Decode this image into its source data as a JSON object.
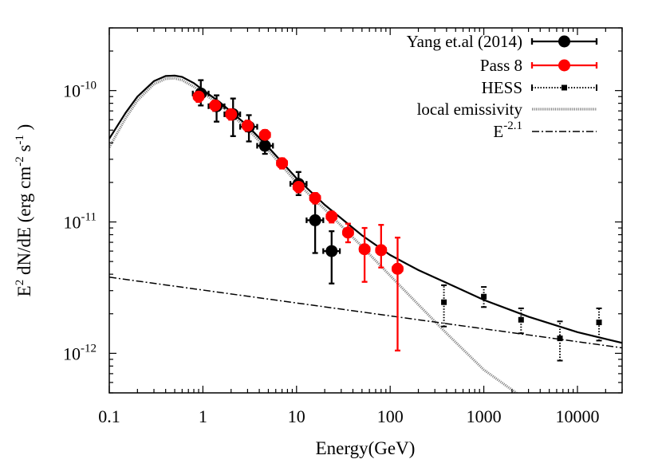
{
  "chart_data": {
    "type": "scatter",
    "xlabel": "Energy(GeV)",
    "ylabel": "E^2 dN/dE (erg cm^-2 s^-1)",
    "x_scale": "log",
    "y_scale": "log",
    "xlim": [
      0.1,
      30000
    ],
    "ylim": [
      5e-13,
      3e-10
    ],
    "x_ticks": [
      {
        "value": 0.1,
        "label": "0.1"
      },
      {
        "value": 1,
        "label": "1"
      },
      {
        "value": 10,
        "label": "10"
      },
      {
        "value": 100,
        "label": "100"
      },
      {
        "value": 1000,
        "label": "1000"
      },
      {
        "value": 10000,
        "label": "10000"
      }
    ],
    "y_ticks": [
      {
        "value": 1e-12,
        "base": "10",
        "exp": "-12"
      },
      {
        "value": 1e-11,
        "base": "10",
        "exp": "-11"
      },
      {
        "value": 1e-10,
        "base": "10",
        "exp": "-10"
      }
    ],
    "grid": false,
    "legend_position": "top-right",
    "series": [
      {
        "name": "Yang et.al (2014)",
        "kind": "points",
        "color": "#000000",
        "marker": "circle",
        "points": [
          {
            "x": 0.95,
            "y": 9.5e-11,
            "xlo": 0.78,
            "xhi": 1.15,
            "ylo": 7.7e-11,
            "yhi": 1.2e-10
          },
          {
            "x": 1.4,
            "y": 7.6e-11,
            "xlo": 1.15,
            "xhi": 1.7,
            "ylo": 5.8e-11,
            "yhi": 9.2e-11
          },
          {
            "x": 2.1,
            "y": 6.6e-11,
            "xlo": 1.7,
            "xhi": 2.5,
            "ylo": 4.5e-11,
            "yhi": 8.7e-11
          },
          {
            "x": 3.1,
            "y": 5.3e-11,
            "xlo": 2.5,
            "xhi": 3.8,
            "ylo": 4.1e-11,
            "yhi": 6.5e-11
          },
          {
            "x": 4.6,
            "y": 3.8e-11,
            "xlo": 3.8,
            "xhi": 5.6,
            "ylo": 3.3e-11,
            "yhi": 4.4e-11
          },
          {
            "x": 10.5,
            "y": 1.95e-11,
            "xlo": 8.6,
            "xhi": 12.8,
            "ylo": 1.6e-11,
            "yhi": 2.4e-11
          },
          {
            "x": 15.8,
            "y": 1.03e-11,
            "xlo": 12.8,
            "xhi": 19.3,
            "ylo": 5.8e-12,
            "yhi": 1.5e-11
          },
          {
            "x": 23.7,
            "y": 6e-12,
            "xlo": 19.3,
            "xhi": 29.0,
            "ylo": 3.4e-12,
            "yhi": 8.5e-12
          }
        ]
      },
      {
        "name": "Pass 8",
        "kind": "points",
        "color": "#ff0000",
        "marker": "circle",
        "points": [
          {
            "x": 0.9,
            "y": 9e-11,
            "xlo": 0.8,
            "xhi": 1.0,
            "ylo": 8.2e-11,
            "yhi": 9.9e-11
          },
          {
            "x": 1.35,
            "y": 7.7e-11,
            "xlo": 1.2,
            "xhi": 1.5,
            "ylo": 7e-11,
            "yhi": 8.4e-11
          },
          {
            "x": 2.0,
            "y": 6.6e-11,
            "xlo": 1.78,
            "xhi": 2.25,
            "ylo": 6e-11,
            "yhi": 7.2e-11
          },
          {
            "x": 3.0,
            "y": 5.4e-11,
            "xlo": 2.67,
            "xhi": 3.4,
            "ylo": 4.9e-11,
            "yhi": 5.9e-11
          },
          {
            "x": 4.6,
            "y": 4.6e-11,
            "xlo": 4.1,
            "xhi": 5.2,
            "ylo": 4.2e-11,
            "yhi": 5e-11
          },
          {
            "x": 7.0,
            "y": 2.8e-11,
            "xlo": 6.2,
            "xhi": 7.9,
            "ylo": 2.55e-11,
            "yhi": 3.05e-11
          },
          {
            "x": 10.5,
            "y": 1.85e-11,
            "xlo": 9.3,
            "xhi": 11.8,
            "ylo": 1.68e-11,
            "yhi": 2.02e-11
          },
          {
            "x": 15.8,
            "y": 1.52e-11,
            "xlo": 14.0,
            "xhi": 17.8,
            "ylo": 1.38e-11,
            "yhi": 1.66e-11
          },
          {
            "x": 23.7,
            "y": 1.1e-11,
            "xlo": 21.0,
            "xhi": 26.7,
            "ylo": 9.9e-12,
            "yhi": 1.2e-11
          },
          {
            "x": 35.5,
            "y": 8.3e-12,
            "xlo": 31.6,
            "xhi": 40.0,
            "ylo": 7e-12,
            "yhi": 9.7e-12
          },
          {
            "x": 53.3,
            "y": 6.2e-12,
            "xlo": 47.4,
            "xhi": 60.0,
            "ylo": 3.5e-12,
            "yhi": 9e-12
          },
          {
            "x": 80.0,
            "y": 6.1e-12,
            "xlo": 71.1,
            "xhi": 90.0,
            "ylo": 4.5e-12,
            "yhi": 9.5e-12
          },
          {
            "x": 120.0,
            "y": 4.4e-12,
            "xlo": 106.7,
            "xhi": 135.0,
            "ylo": 1.05e-12,
            "yhi": 7.6e-12
          }
        ]
      },
      {
        "name": "HESS",
        "kind": "points",
        "color": "#000000",
        "marker": "square",
        "points": [
          {
            "x": 375,
            "y": 2.45e-12,
            "ylo": 1.6e-12,
            "yhi": 3.3e-12
          },
          {
            "x": 1000,
            "y": 2.7e-12,
            "ylo": 2.25e-12,
            "yhi": 3.2e-12
          },
          {
            "x": 2500,
            "y": 1.8e-12,
            "ylo": 1.42e-12,
            "yhi": 2.2e-12
          },
          {
            "x": 6500,
            "y": 1.3e-12,
            "ylo": 8.8e-13,
            "yhi": 1.75e-12
          },
          {
            "x": 17000,
            "y": 1.72e-12,
            "ylo": 1.25e-12,
            "yhi": 2.2e-12
          }
        ]
      },
      {
        "name": "local emissivity",
        "kind": "line",
        "color": "#777777",
        "points": [
          [
            0.1,
            3.7e-11
          ],
          [
            0.15,
            6.2e-11
          ],
          [
            0.2,
            8.4e-11
          ],
          [
            0.3,
            1.12e-10
          ],
          [
            0.4,
            1.23e-10
          ],
          [
            0.5,
            1.24e-10
          ],
          [
            0.6,
            1.2e-10
          ],
          [
            0.8,
            1.07e-10
          ],
          [
            1.0,
            9.6e-11
          ],
          [
            1.5,
            7.8e-11
          ],
          [
            2.0,
            6.6e-11
          ],
          [
            3.0,
            5.1e-11
          ],
          [
            5.0,
            3.5e-11
          ],
          [
            10,
            2e-11
          ],
          [
            20,
            1.25e-11
          ],
          [
            50,
            6.5e-12
          ],
          [
            100,
            3.9e-12
          ],
          [
            200,
            2.35e-12
          ],
          [
            400,
            1.42e-12
          ],
          [
            1000,
            7.5e-13
          ],
          [
            2500,
            4.7e-13
          ]
        ]
      },
      {
        "name": "E^-2.1",
        "kind": "line",
        "color": "#000000",
        "points": [
          [
            0.1,
            3.8e-12
          ],
          [
            30000,
            1.1e-12
          ]
        ]
      },
      {
        "name": "",
        "kind": "line",
        "color": "#000000",
        "points": [
          [
            0.1,
            4.3e-11
          ],
          [
            0.15,
            6.8e-11
          ],
          [
            0.2,
            9e-11
          ],
          [
            0.3,
            1.18e-10
          ],
          [
            0.4,
            1.29e-10
          ],
          [
            0.5,
            1.3e-10
          ],
          [
            0.6,
            1.27e-10
          ],
          [
            0.8,
            1.14e-10
          ],
          [
            1.0,
            1.01e-10
          ],
          [
            1.5,
            8.2e-11
          ],
          [
            2.0,
            6.9e-11
          ],
          [
            3.0,
            5.4e-11
          ],
          [
            5.0,
            3.7e-11
          ],
          [
            10,
            2.15e-11
          ],
          [
            20,
            1.35e-11
          ],
          [
            50,
            7.9e-12
          ],
          [
            100,
            5.6e-12
          ],
          [
            200,
            4.3e-12
          ],
          [
            500,
            3.2e-12
          ],
          [
            1000,
            2.55e-12
          ],
          [
            3000,
            1.9e-12
          ],
          [
            10000,
            1.45e-12
          ],
          [
            30000,
            1.2e-12
          ]
        ]
      }
    ],
    "legend": [
      {
        "label": "Yang et.al (2014)",
        "style": "black-circle-errorbar"
      },
      {
        "label": "Pass 8",
        "style": "red-circle-errorbar"
      },
      {
        "label": "HESS",
        "style": "black-square-dotted"
      },
      {
        "label": "local emissivity",
        "style": "gray-line"
      },
      {
        "label": "E",
        "sup": "-2.1",
        "style": "dash-dot"
      }
    ]
  }
}
